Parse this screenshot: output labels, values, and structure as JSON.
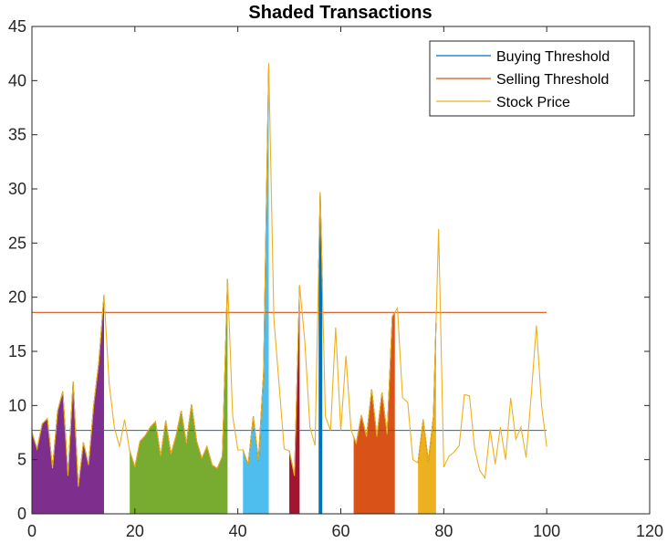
{
  "chart_data": {
    "type": "line",
    "title": "Shaded Transactions",
    "xlabel": "",
    "ylabel": "",
    "xlim": [
      0,
      120
    ],
    "ylim": [
      0,
      45
    ],
    "xticks": [
      0,
      20,
      40,
      60,
      80,
      100,
      120
    ],
    "yticks": [
      0,
      5,
      10,
      15,
      20,
      25,
      30,
      35,
      40,
      45
    ],
    "legend_position": "top-right",
    "grid": false,
    "series": [
      {
        "name": "Buying Threshold",
        "color": "#0072BD",
        "x": [
          0,
          100
        ],
        "values": [
          7.7,
          7.7
        ]
      },
      {
        "name": "Selling Threshold",
        "color": "#D95319",
        "x": [
          0,
          100
        ],
        "values": [
          18.6,
          18.6
        ]
      },
      {
        "name": "Stock Price",
        "color": "#EDB120",
        "x": [
          0,
          1,
          2,
          3,
          4,
          5,
          6,
          7,
          8,
          9,
          10,
          11,
          12,
          13,
          14,
          15,
          16,
          17,
          18,
          19,
          20,
          21,
          22,
          23,
          24,
          25,
          26,
          27,
          28,
          29,
          30,
          31,
          32,
          33,
          34,
          35,
          36,
          37,
          38,
          39,
          40,
          41,
          42,
          43,
          44,
          45,
          46,
          47,
          48,
          49,
          50,
          51,
          52,
          53,
          54,
          55,
          56,
          57,
          58,
          59,
          60,
          61,
          62,
          63,
          64,
          65,
          66,
          67,
          68,
          69,
          70,
          71,
          72,
          73,
          74,
          75,
          76,
          77,
          78,
          79,
          80,
          81,
          82,
          83,
          84,
          85,
          86,
          87,
          88,
          89,
          90,
          91,
          92,
          93,
          94,
          95,
          96,
          97,
          98,
          99,
          100
        ],
        "values": [
          7.5,
          6.0,
          8.3,
          8.8,
          4.2,
          9.5,
          11.3,
          3.5,
          12.2,
          2.5,
          6.6,
          4.5,
          10.0,
          14.0,
          20.2,
          12.0,
          8.0,
          6.2,
          8.7,
          5.8,
          4.3,
          6.7,
          7.2,
          8.0,
          8.5,
          5.3,
          8.6,
          5.5,
          7.2,
          9.5,
          6.5,
          10.1,
          6.7,
          5.1,
          6.2,
          4.5,
          4.2,
          5.3,
          21.7,
          9.0,
          5.9,
          5.9,
          4.5,
          9.0,
          4.9,
          13.0,
          41.6,
          18.0,
          12.0,
          6.0,
          5.8,
          3.5,
          21.1,
          16.0,
          8.0,
          6.3,
          29.7,
          9.0,
          7.7,
          17.2,
          7.7,
          14.6,
          7.7,
          6.5,
          9.1,
          7.1,
          11.5,
          7.1,
          11.2,
          7.3,
          18.2,
          19.0,
          10.7,
          10.3,
          5.0,
          4.7,
          8.7,
          4.8,
          9.0,
          26.3,
          4.3,
          5.3,
          5.7,
          6.3,
          11.0,
          10.9,
          6.0,
          4.0,
          3.3,
          7.8,
          4.6,
          8.0,
          5.0,
          10.7,
          6.9,
          8.0,
          5.2,
          11.0,
          17.4,
          10.0,
          6.2
        ]
      }
    ],
    "shaded_regions": [
      {
        "x_start": 0,
        "x_end": 14,
        "color": "#7E2F8E"
      },
      {
        "x_start": 19,
        "x_end": 38,
        "color": "#77AC30"
      },
      {
        "x_start": 41,
        "x_end": 46,
        "color": "#4DBEEE"
      },
      {
        "x_start": 50,
        "x_end": 52,
        "color": "#A2142F"
      },
      {
        "x_start": 55.7,
        "x_end": 56.4,
        "color": "#0072BD"
      },
      {
        "x_start": 62.5,
        "x_end": 70.5,
        "color": "#D95319"
      },
      {
        "x_start": 75,
        "x_end": 78.5,
        "color": "#EDB120"
      }
    ]
  }
}
